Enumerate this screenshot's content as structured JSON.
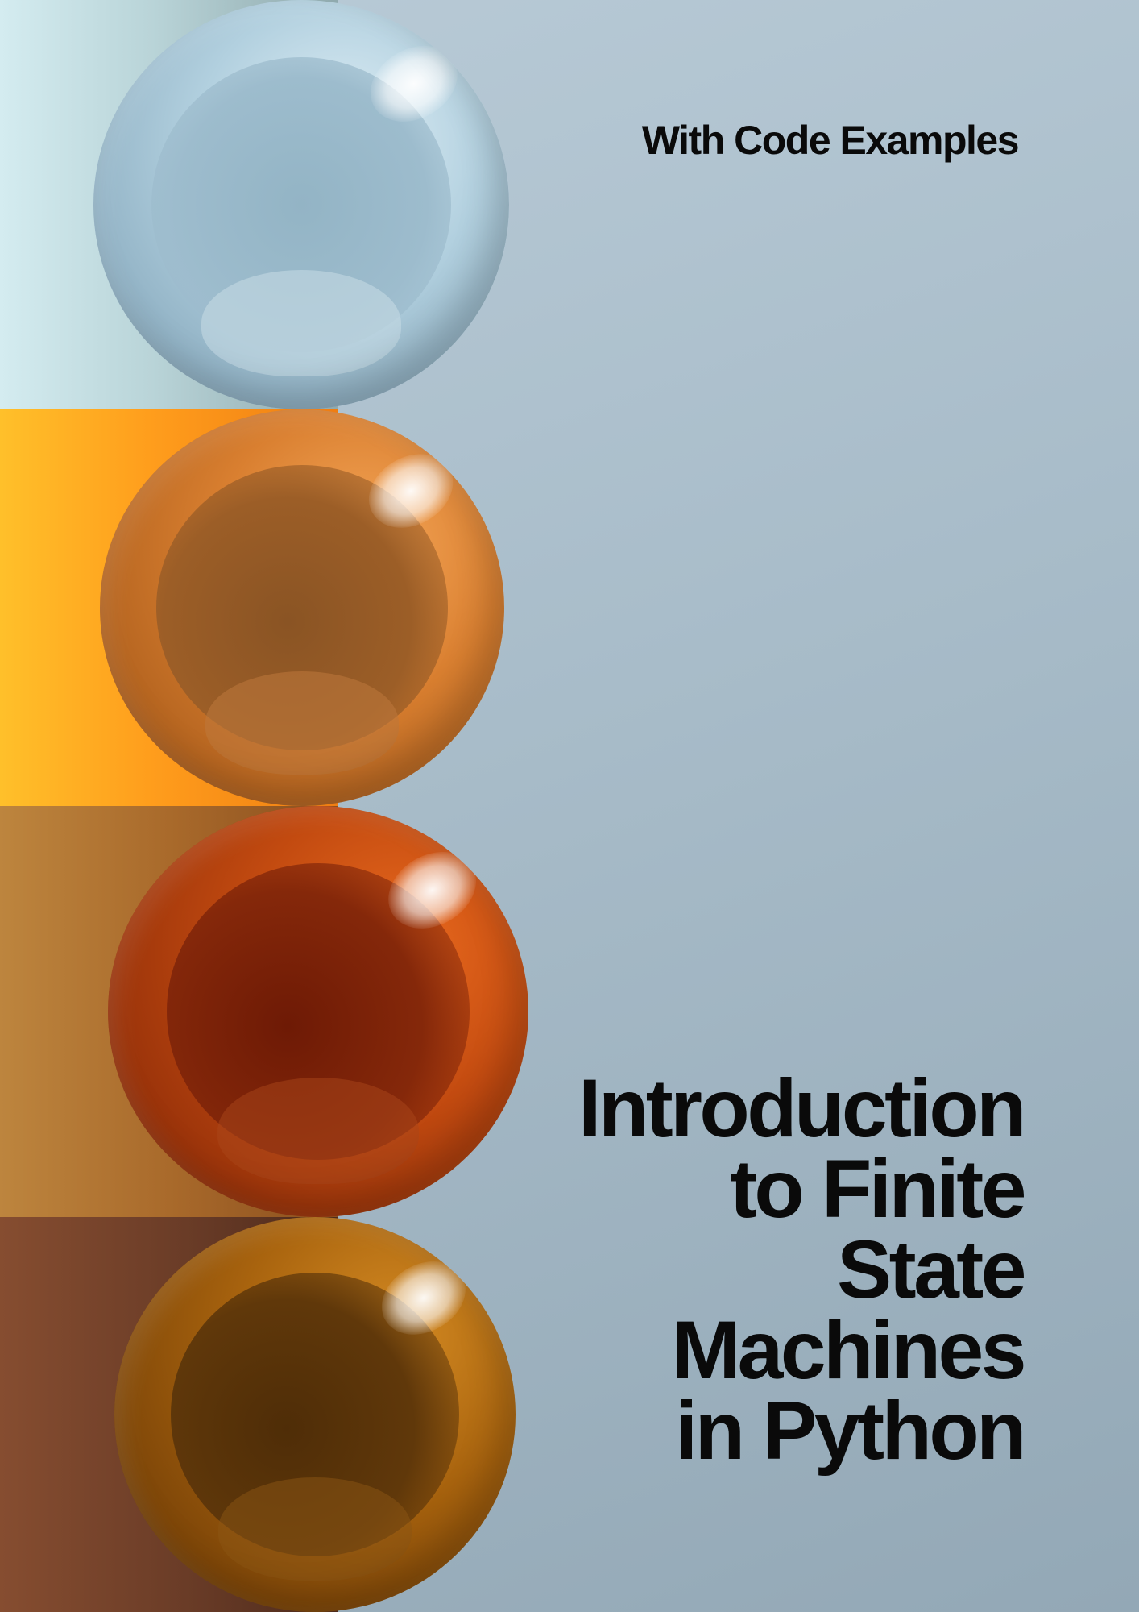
{
  "cover": {
    "subtitle": "With Code Examples",
    "title_lines": [
      "Introduction",
      "to Finite",
      "State",
      "Machines",
      "in Python"
    ]
  },
  "artwork": {
    "background_color": "#a8bcc9",
    "spheres": [
      {
        "color_name": "light-blue",
        "color": "#b2d0df"
      },
      {
        "color_name": "orange",
        "color": "#d97f30"
      },
      {
        "color_name": "red-orange",
        "color": "#c24a10"
      },
      {
        "color_name": "amber-brown",
        "color": "#a8630e"
      }
    ],
    "bands": [
      {
        "color": "#c8e2e6"
      },
      {
        "color": "#ffa520"
      },
      {
        "color": "#b07233"
      },
      {
        "color": "#74422b"
      }
    ]
  }
}
